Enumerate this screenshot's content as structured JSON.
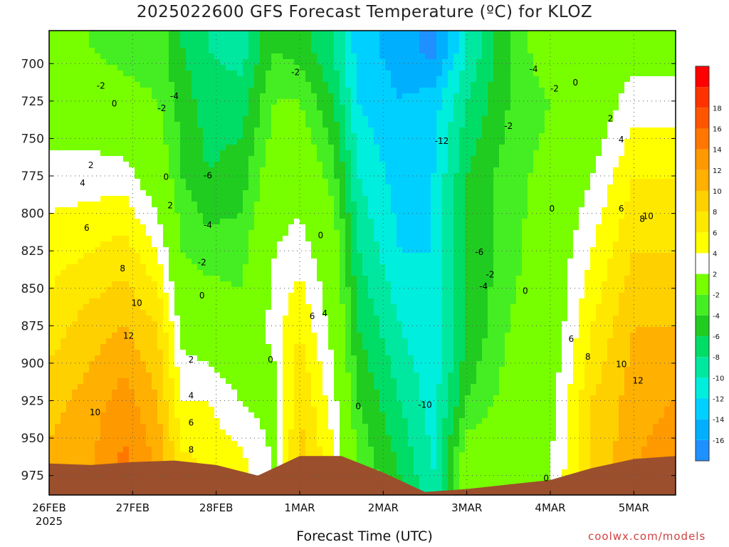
{
  "title": "2025022600 GFS Forecast Temperature (ºC) for KLOZ",
  "credit": "coolwx.com/models",
  "chart_data": {
    "type": "heatmap",
    "title": "2025022600 GFS Forecast Temperature (ºC) for KLOZ",
    "xlabel": "Forecast Time (UTC)",
    "ylabel": "",
    "y_inverted": true,
    "ylim": [
      988,
      678
    ],
    "y_ticks": [
      700,
      725,
      750,
      775,
      800,
      825,
      850,
      875,
      900,
      925,
      950,
      975
    ],
    "x_ticks": [
      {
        "label": "26FEB",
        "day": 0
      },
      {
        "label": "27FEB",
        "day": 1
      },
      {
        "label": "28FEB",
        "day": 2
      },
      {
        "label": "1MAR",
        "day": 3
      },
      {
        "label": "2MAR",
        "day": 4
      },
      {
        "label": "3MAR",
        "day": 5
      },
      {
        "label": "4MAR",
        "day": 6
      },
      {
        "label": "5MAR",
        "day": 7
      }
    ],
    "x_start_year": "2025",
    "xlim_days": [
      0,
      7.5
    ],
    "grid": true,
    "colorbar": {
      "levels": [
        -18,
        -16,
        -14,
        -12,
        -10,
        -8,
        -6,
        -4,
        -2,
        2,
        4,
        6,
        8,
        10,
        12,
        14,
        16,
        18,
        20
      ],
      "labels": [
        "-16",
        "-14",
        "-12",
        "-10",
        "-8",
        "-6",
        "-4",
        "-2",
        "2",
        "4",
        "6",
        "8",
        "10",
        "12",
        "14",
        "16",
        "18"
      ],
      "colors": [
        "#1e90ff",
        "#00b0ff",
        "#00d0ff",
        "#00eedd",
        "#00e8a0",
        "#00dd66",
        "#20cc20",
        "#44ee22",
        "#77ff00",
        "#ffffff",
        "#ffff00",
        "#ffe800",
        "#ffd000",
        "#ffb000",
        "#ff9900",
        "#ff7700",
        "#ff5500",
        "#ff3300",
        "#ff0000"
      ]
    },
    "terrain_color": "#9b4f2c",
    "surface_pressure": [
      {
        "day": 0,
        "p": 967
      },
      {
        "day": 0.5,
        "p": 968
      },
      {
        "day": 1.0,
        "p": 966
      },
      {
        "day": 1.5,
        "p": 965
      },
      {
        "day": 2.0,
        "p": 968
      },
      {
        "day": 2.5,
        "p": 975
      },
      {
        "day": 3.0,
        "p": 962
      },
      {
        "day": 3.5,
        "p": 962
      },
      {
        "day": 4.0,
        "p": 973
      },
      {
        "day": 4.5,
        "p": 986
      },
      {
        "day": 5.0,
        "p": 984
      },
      {
        "day": 5.5,
        "p": 981
      },
      {
        "day": 6.0,
        "p": 978
      },
      {
        "day": 6.5,
        "p": 970
      },
      {
        "day": 7.0,
        "p": 964
      },
      {
        "day": 7.5,
        "p": 962
      }
    ],
    "temperature_profile": {
      "note": "approximate mean temperature (C) at 975/925/875/825/775/725/690 hPa",
      "levels_hpa": [
        975,
        925,
        875,
        825,
        775,
        725,
        690
      ],
      "samples": [
        {
          "day": 0.0,
          "t": [
            11,
            9,
            7,
            5,
            3,
            0,
            -2
          ]
        },
        {
          "day": 0.5,
          "t": [
            12,
            11,
            9,
            6,
            3,
            0,
            -2
          ]
        },
        {
          "day": 0.9,
          "t": [
            15,
            13,
            10,
            7,
            3,
            -1,
            -3
          ]
        },
        {
          "day": 1.3,
          "t": [
            12,
            10,
            8,
            4,
            0,
            -2,
            -3
          ]
        },
        {
          "day": 1.6,
          "t": [
            7,
            4,
            1,
            -2,
            -4,
            -5,
            -6
          ]
        },
        {
          "day": 1.9,
          "t": [
            6,
            4,
            0,
            -3,
            -6,
            -7,
            -8
          ]
        },
        {
          "day": 2.3,
          "t": [
            5,
            2,
            -1,
            -3,
            -5,
            -7,
            -9
          ]
        },
        {
          "day": 2.7,
          "t": [
            2,
            1,
            3,
            2,
            0,
            -2,
            -4
          ]
        },
        {
          "day": 3.0,
          "t": [
            9,
            8,
            6,
            3,
            1,
            -2,
            -5
          ]
        },
        {
          "day": 3.4,
          "t": [
            5,
            3,
            1,
            0,
            -3,
            -6,
            -8
          ]
        },
        {
          "day": 3.7,
          "t": [
            -2,
            -4,
            -6,
            -8,
            -10,
            -12,
            -13
          ]
        },
        {
          "day": 4.2,
          "t": [
            -6,
            -8,
            -10,
            -12,
            -13,
            -14,
            -15
          ]
        },
        {
          "day": 4.6,
          "t": [
            -10,
            -11,
            -12,
            -12,
            -12,
            -13,
            -17
          ]
        },
        {
          "day": 5.0,
          "t": [
            1,
            -4,
            -6,
            -6,
            -6,
            -8,
            -10
          ]
        },
        {
          "day": 5.5,
          "t": [
            0,
            -1,
            -2,
            -3,
            -3,
            -4,
            -4
          ]
        },
        {
          "day": 6.0,
          "t": [
            2,
            1,
            0,
            0,
            -1,
            -2,
            0
          ]
        },
        {
          "day": 6.5,
          "t": [
            8,
            8,
            6,
            4,
            2,
            0,
            1
          ]
        },
        {
          "day": 7.0,
          "t": [
            12,
            11,
            10,
            8,
            6,
            3,
            1
          ]
        },
        {
          "day": 7.5,
          "t": [
            14,
            12,
            10,
            8,
            6,
            3,
            1
          ]
        }
      ]
    },
    "contour_labels": [
      {
        "text": "-2",
        "day": 0.62,
        "p": 715
      },
      {
        "text": "0",
        "day": 0.78,
        "p": 727
      },
      {
        "text": "-2",
        "day": 1.35,
        "p": 730
      },
      {
        "text": "-4",
        "day": 1.5,
        "p": 722
      },
      {
        "text": "-2",
        "day": 2.95,
        "p": 706
      },
      {
        "text": "-4",
        "day": 5.8,
        "p": 704
      },
      {
        "text": "-2",
        "day": 6.05,
        "p": 717
      },
      {
        "text": "0",
        "day": 6.3,
        "p": 713
      },
      {
        "text": "2",
        "day": 0.5,
        "p": 768
      },
      {
        "text": "4",
        "day": 0.4,
        "p": 780
      },
      {
        "text": "0",
        "day": 1.4,
        "p": 776
      },
      {
        "text": "2",
        "day": 1.45,
        "p": 795
      },
      {
        "text": "-12",
        "day": 4.7,
        "p": 752
      },
      {
        "text": "-2",
        "day": 5.5,
        "p": 742
      },
      {
        "text": "2",
        "day": 6.72,
        "p": 737
      },
      {
        "text": "4",
        "day": 6.85,
        "p": 751
      },
      {
        "text": "-6",
        "day": 1.9,
        "p": 775
      },
      {
        "text": "-4",
        "day": 1.9,
        "p": 808
      },
      {
        "text": "-2",
        "day": 1.83,
        "p": 833
      },
      {
        "text": "6",
        "day": 0.45,
        "p": 810
      },
      {
        "text": "0",
        "day": 6.02,
        "p": 797
      },
      {
        "text": "6",
        "day": 6.85,
        "p": 797
      },
      {
        "text": "8",
        "day": 7.1,
        "p": 804
      },
      {
        "text": "10",
        "day": 7.17,
        "p": 802
      },
      {
        "text": "8",
        "day": 0.88,
        "p": 837
      },
      {
        "text": "0",
        "day": 3.25,
        "p": 815
      },
      {
        "text": "-6",
        "day": 5.15,
        "p": 826
      },
      {
        "text": "-2",
        "day": 5.28,
        "p": 841
      },
      {
        "text": "-4",
        "day": 5.2,
        "p": 849
      },
      {
        "text": "0",
        "day": 5.7,
        "p": 852
      },
      {
        "text": "0",
        "day": 1.83,
        "p": 855
      },
      {
        "text": "10",
        "day": 1.05,
        "p": 860
      },
      {
        "text": "6",
        "day": 3.15,
        "p": 869
      },
      {
        "text": "4",
        "day": 3.3,
        "p": 867
      },
      {
        "text": "12",
        "day": 0.95,
        "p": 882
      },
      {
        "text": "6",
        "day": 6.25,
        "p": 884
      },
      {
        "text": "8",
        "day": 6.45,
        "p": 896
      },
      {
        "text": "10",
        "day": 6.85,
        "p": 901
      },
      {
        "text": "12",
        "day": 7.05,
        "p": 912
      },
      {
        "text": "2",
        "day": 1.7,
        "p": 898
      },
      {
        "text": "0",
        "day": 2.65,
        "p": 898
      },
      {
        "text": "4",
        "day": 1.7,
        "p": 922
      },
      {
        "text": "6",
        "day": 1.7,
        "p": 940
      },
      {
        "text": "8",
        "day": 1.7,
        "p": 958
      },
      {
        "text": "10",
        "day": 0.55,
        "p": 933
      },
      {
        "text": "0",
        "day": 3.7,
        "p": 929
      },
      {
        "text": "-10",
        "day": 4.5,
        "p": 928
      },
      {
        "text": "0",
        "day": 5.95,
        "p": 977
      }
    ]
  }
}
